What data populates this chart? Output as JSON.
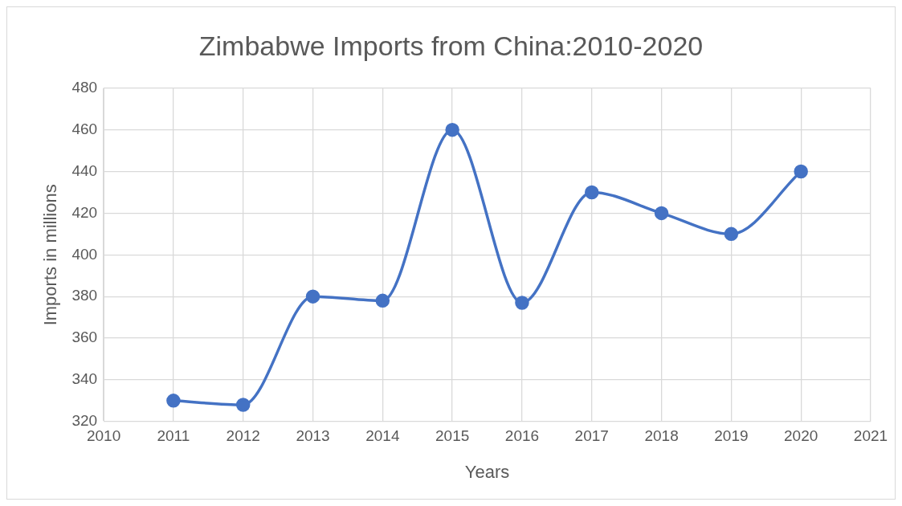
{
  "chart_data": {
    "type": "line",
    "title": "Zimbabwe Imports from China:2010-2020",
    "xlabel": "Years",
    "ylabel": "Imports in millions",
    "x": [
      2011,
      2012,
      2013,
      2014,
      2015,
      2016,
      2017,
      2018,
      2019,
      2020
    ],
    "series": [
      {
        "color": "#4472c4",
        "values": [
          330,
          328,
          380,
          378,
          460,
          377,
          430,
          420,
          410,
          440
        ]
      }
    ],
    "xlim": [
      2010,
      2021
    ],
    "xticks": [
      2010,
      2011,
      2012,
      2013,
      2014,
      2015,
      2016,
      2017,
      2018,
      2019,
      2020,
      2021
    ],
    "ylim": [
      320,
      480
    ],
    "yticks": [
      320,
      340,
      360,
      380,
      400,
      420,
      440,
      460,
      480
    ],
    "grid": true,
    "legend": false,
    "marker": "circle",
    "line_style": "solid"
  }
}
